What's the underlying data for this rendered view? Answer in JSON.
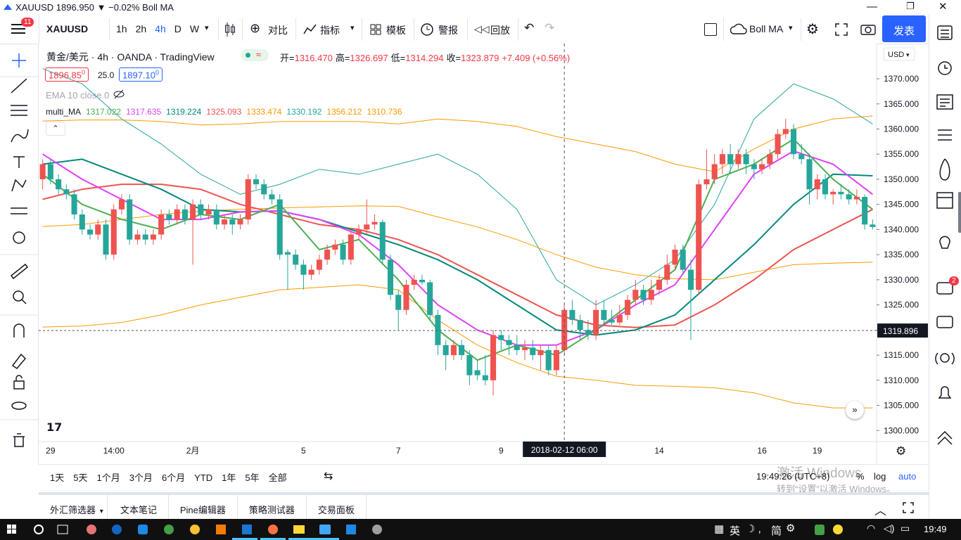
{
  "window_title": "XAUUSD 1896.950 ▼ −0.02% Boll MA",
  "toolbar": {
    "menu_badge": "11",
    "symbol": "XAUUSD",
    "intervals": [
      "1h",
      "2h",
      "4h",
      "D",
      "W"
    ],
    "compare": "对比",
    "indicators": "指标",
    "templates": "模板",
    "alerts": "警报",
    "replay": "回放",
    "study": "Boll MA",
    "publish": "发表"
  },
  "legend": {
    "symbol": "黄金/美元 · 4h · OANDA · TradingView",
    "ohlc": [
      [
        "开=",
        "1316.470"
      ],
      [
        "高=",
        "1326.697"
      ],
      [
        "低=",
        "1314.294"
      ],
      [
        "收=",
        "1323.879"
      ]
    ],
    "change": "+7.409 (+0.56%)",
    "bid": "1896.85",
    "bid_tail": "0",
    "spread": "25.0",
    "ask": "1897.10",
    "ask_tail": "0",
    "ema": "EMA 10 close 0",
    "multi_ma": {
      "name": "multi_MA",
      "values": [
        {
          "text": "1317.022",
          "color": "#4caf50"
        },
        {
          "text": "1317.635",
          "color": "#e040fb"
        },
        {
          "text": "1319.224",
          "color": "#00897b"
        },
        {
          "text": "1325.093",
          "color": "#ef5350"
        },
        {
          "text": "1333.474",
          "color": "#ff9800"
        },
        {
          "text": "1330.192",
          "color": "#26a69a"
        },
        {
          "text": "1356.212",
          "color": "#ff9800"
        },
        {
          "text": "1310.736",
          "color": "#ff9800"
        }
      ]
    }
  },
  "chart_data": {
    "type": "candlestick",
    "currency": "USD",
    "up_color": "#ef5350",
    "down_color": "#26a69a",
    "categories": [
      null,
      "29",
      null,
      null,
      null,
      null,
      null,
      null,
      null,
      "14:00",
      null,
      null,
      null,
      null,
      null,
      null,
      null,
      null,
      null,
      "2月",
      null,
      null,
      null,
      null,
      null,
      null,
      null,
      null,
      null,
      null,
      null,
      null,
      null,
      "5",
      null,
      null,
      null,
      null,
      null,
      null,
      null,
      null,
      null,
      null,
      null,
      "7",
      null,
      null,
      null,
      null,
      null,
      null,
      null,
      null,
      null,
      null,
      null,
      null,
      "9",
      null,
      null,
      null,
      null,
      null,
      null,
      null,
      "2018-02-12 06:00",
      null,
      null,
      null,
      null,
      null,
      null,
      null,
      null,
      null,
      null,
      null,
      "14",
      null,
      null,
      null,
      null,
      null,
      null,
      null,
      null,
      null,
      null,
      null,
      null,
      "16",
      null,
      null,
      null,
      null,
      null,
      null,
      "19",
      null,
      null,
      null,
      null,
      null,
      null,
      null
    ],
    "ohlc": [
      [
        1350,
        1354,
        1348,
        1353
      ],
      [
        1353,
        1354,
        1349,
        1350
      ],
      [
        1350,
        1351,
        1347,
        1348
      ],
      [
        1348,
        1349,
        1346,
        1347
      ],
      [
        1347,
        1348,
        1342,
        1343
      ],
      [
        1343,
        1344,
        1339,
        1340
      ],
      [
        1340,
        1341,
        1338,
        1339
      ],
      [
        1339,
        1342,
        1338,
        1341
      ],
      [
        1341,
        1342,
        1334,
        1335
      ],
      [
        1335,
        1345,
        1334,
        1344
      ],
      [
        1344,
        1347,
        1343,
        1346
      ],
      [
        1346,
        1347,
        1337,
        1338
      ],
      [
        1338,
        1340,
        1337,
        1339
      ],
      [
        1339,
        1340,
        1337,
        1338
      ],
      [
        1338,
        1340,
        1337,
        1339
      ],
      [
        1339,
        1344,
        1338,
        1343
      ],
      [
        1343,
        1344,
        1341,
        1342
      ],
      [
        1342,
        1345,
        1341,
        1344
      ],
      [
        1344,
        1345,
        1341,
        1342
      ],
      [
        1342,
        1346,
        1333,
        1345
      ],
      [
        1345,
        1346,
        1342,
        1343
      ],
      [
        1343,
        1345,
        1342,
        1344
      ],
      [
        1344,
        1345,
        1340,
        1341
      ],
      [
        1341,
        1343,
        1340,
        1342
      ],
      [
        1342,
        1343,
        1339,
        1341
      ],
      [
        1341,
        1343,
        1340,
        1342
      ],
      [
        1342,
        1351,
        1341,
        1350
      ],
      [
        1350,
        1351,
        1348,
        1349
      ],
      [
        1349,
        1350,
        1346,
        1347
      ],
      [
        1347,
        1348,
        1345,
        1346
      ],
      [
        1346,
        1347,
        1334,
        1335
      ],
      [
        1335.5,
        1336,
        1328,
        1335
      ],
      [
        1335,
        1336,
        1332,
        1333
      ],
      [
        1333,
        1334,
        1328,
        1331
      ],
      [
        1331,
        1333,
        1330,
        1332
      ],
      [
        1332,
        1335,
        1331,
        1334
      ],
      [
        1334,
        1337,
        1333,
        1336
      ],
      [
        1336,
        1338,
        1335,
        1337
      ],
      [
        1337,
        1338,
        1333,
        1334
      ],
      [
        1334,
        1340,
        1333,
        1339
      ],
      [
        1339,
        1341,
        1338,
        1340
      ],
      [
        1340,
        1346,
        1339,
        1341
      ],
      [
        1341,
        1343,
        1340,
        1341.5
      ],
      [
        1341.5,
        1342,
        1333,
        1334
      ],
      [
        1334,
        1335,
        1326,
        1327
      ],
      [
        1327,
        1328,
        1320,
        1324
      ],
      [
        1324,
        1330,
        1323,
        1329
      ],
      [
        1329,
        1331,
        1328,
        1330
      ],
      [
        1330,
        1331,
        1329,
        1329.5
      ],
      [
        1329.5,
        1330,
        1322,
        1323
      ],
      [
        1323,
        1324,
        1315,
        1317
      ],
      [
        1317,
        1318,
        1312,
        1315
      ],
      [
        1315,
        1318,
        1314,
        1317
      ],
      [
        1317,
        1318,
        1314,
        1315
      ],
      [
        1315,
        1316,
        1309,
        1311
      ],
      [
        1312,
        1314,
        1310,
        1311
      ],
      [
        1311,
        1315,
        1309,
        1310
      ],
      [
        1310,
        1320,
        1307,
        1319
      ],
      [
        1319,
        1320,
        1316,
        1318
      ],
      [
        1318,
        1319,
        1315,
        1317
      ],
      [
        1317,
        1319,
        1315,
        1316
      ],
      [
        1316,
        1318,
        1314,
        1316.5
      ],
      [
        1316.5,
        1318,
        1314,
        1315
      ],
      [
        1315,
        1317,
        1312,
        1316
      ],
      [
        1316,
        1317,
        1311,
        1312
      ],
      [
        1312,
        1317,
        1311,
        1316
      ],
      [
        1316,
        1325,
        1315,
        1324
      ],
      [
        1324,
        1326,
        1321,
        1322
      ],
      [
        1322,
        1323,
        1318,
        1320
      ],
      [
        1320,
        1322,
        1318,
        1319
      ],
      [
        1319,
        1326,
        1318,
        1324
      ],
      [
        1324,
        1326,
        1321,
        1322
      ],
      [
        1322,
        1324,
        1321,
        1321.5
      ],
      [
        1321.5,
        1325,
        1321,
        1323
      ],
      [
        1323,
        1327,
        1322,
        1326
      ],
      [
        1326,
        1330,
        1325,
        1328
      ],
      [
        1328,
        1329,
        1325,
        1326
      ],
      [
        1326,
        1330,
        1325,
        1328
      ],
      [
        1328,
        1331,
        1327,
        1330
      ],
      [
        1330,
        1335,
        1329,
        1333
      ],
      [
        1333,
        1337,
        1332,
        1336
      ],
      [
        1336,
        1337,
        1331,
        1332
      ],
      [
        1332,
        1334,
        1318,
        1328
      ],
      [
        1328,
        1350,
        1327,
        1349
      ],
      [
        1349,
        1356,
        1348,
        1350
      ],
      [
        1350,
        1355,
        1349,
        1353
      ],
      [
        1353,
        1356,
        1351,
        1355
      ],
      [
        1355,
        1357,
        1351,
        1353
      ],
      [
        1353,
        1356,
        1352,
        1355
      ],
      [
        1355,
        1356,
        1351,
        1353
      ],
      [
        1353,
        1354,
        1350,
        1352
      ],
      [
        1352,
        1354,
        1351,
        1353
      ],
      [
        1353,
        1356,
        1352,
        1355
      ],
      [
        1355,
        1360,
        1354,
        1359
      ],
      [
        1359,
        1362,
        1358,
        1360
      ],
      [
        1360,
        1361,
        1354,
        1355
      ],
      [
        1355,
        1357,
        1353,
        1354
      ],
      [
        1354,
        1355,
        1345,
        1348
      ],
      [
        1348,
        1351,
        1346,
        1350
      ],
      [
        1350,
        1351,
        1346,
        1347
      ],
      [
        1347,
        1348,
        1345,
        1347.5
      ],
      [
        1347.5,
        1349,
        1346,
        1347
      ],
      [
        1347,
        1348,
        1345,
        1346
      ],
      [
        1346,
        1348,
        1345,
        1346.5
      ],
      [
        1346.5,
        1347,
        1340,
        1341
      ],
      [
        1341,
        1342,
        1340,
        1340.5
      ]
    ],
    "lines": [
      {
        "color": "#26a69a",
        "width": 1,
        "values": [
          1372,
          1369,
          1362,
          1357,
          1351,
          1347,
          1349,
          1352,
          1351,
          1353,
          1355,
          1351,
          1344,
          1330,
          1325,
          1329,
          1334,
          1345,
          1362,
          1369,
          1366,
          1361
        ]
      },
      {
        "color": "#ff9800",
        "width": 1,
        "values": [
          1361.6,
          1361.8,
          1361.8,
          1361.5,
          1360.8,
          1361,
          1361.5,
          1361.5,
          1361.5,
          1361,
          1362,
          1361.5,
          1360.5,
          1358.5,
          1357,
          1355.5,
          1353,
          1351.5,
          1356,
          1360,
          1362,
          1362.6
        ]
      },
      {
        "color": "#ff9800",
        "width": 1,
        "values": [
          1340.6,
          1341,
          1342,
          1343,
          1343.7,
          1344,
          1344.3,
          1344.5,
          1344.7,
          1344.6,
          1342.5,
          1340.5,
          1338,
          1335,
          1332.5,
          1331,
          1330.2,
          1330,
          1331.5,
          1333,
          1333.3,
          1333.5
        ]
      },
      {
        "color": "#ff9800",
        "width": 1,
        "values": [
          1320.6,
          1320.8,
          1321.5,
          1323,
          1325,
          1326.5,
          1328,
          1328.5,
          1329,
          1328,
          1322,
          1317,
          1313.5,
          1310.8,
          1310,
          1309,
          1308.8,
          1308.5,
          1307.5,
          1305.5,
          1304.5,
          1304.5
        ]
      },
      {
        "color": "#ef5350",
        "width": 2,
        "values": [
          1346,
          1348,
          1349,
          1349,
          1348,
          1345,
          1343,
          1341,
          1340,
          1338,
          1335,
          1331,
          1327,
          1323,
          1321,
          1320.5,
          1321,
          1325,
          1330,
          1336,
          1340,
          1344
        ]
      },
      {
        "color": "#00897b",
        "width": 2,
        "values": [
          1353,
          1354,
          1351,
          1348,
          1344,
          1343.5,
          1343.7,
          1342,
          1339.5,
          1337,
          1334,
          1330,
          1325,
          1320,
          1319,
          1320,
          1323,
          1330,
          1337,
          1345,
          1351,
          1350.7
        ]
      },
      {
        "color": "#e040fb",
        "width": 2,
        "values": [
          1355,
          1350,
          1346,
          1342,
          1342,
          1343.5,
          1343.7,
          1342,
          1339,
          1333,
          1325,
          1320,
          1317,
          1317,
          1320,
          1325,
          1329,
          1340,
          1351,
          1355.6,
          1353,
          1347
        ]
      },
      {
        "color": "#4caf50",
        "width": 2,
        "values": [
          1351,
          1345,
          1342,
          1340,
          1343,
          1342,
          1345,
          1336,
          1338,
          1330,
          1320,
          1314,
          1317,
          1315,
          1320,
          1326,
          1332,
          1350,
          1353,
          1358,
          1350,
          1344
        ]
      }
    ],
    "last_price": 1319.896,
    "ylim": [
      1297.8,
      1377
    ],
    "yticks": [
      {
        "value": 1300,
        "label": "1300.000"
      },
      {
        "value": 1305,
        "label": "1305.000"
      },
      {
        "value": 1310,
        "label": "1310.000"
      },
      {
        "value": 1315,
        "label": "1315.000"
      },
      {
        "value": 1320,
        "label": "1320.000"
      },
      {
        "value": 1325,
        "label": "1325.000"
      },
      {
        "value": 1330,
        "label": "1330.000"
      },
      {
        "value": 1335,
        "label": "1335.000"
      },
      {
        "value": 1340,
        "label": "1340.000"
      },
      {
        "value": 1345,
        "label": "1345.000"
      },
      {
        "value": 1350,
        "label": "1350.000"
      },
      {
        "value": 1355,
        "label": "1355.000"
      },
      {
        "value": 1360,
        "label": "1360.000"
      },
      {
        "value": 1365,
        "label": "1365.000"
      },
      {
        "value": 1370,
        "label": "1370.000"
      }
    ]
  },
  "range_bar": {
    "ranges": [
      "1天",
      "5天",
      "1个月",
      "3个月",
      "6个月",
      "YTD",
      "1年",
      "5年",
      "全部"
    ],
    "clock": "19:49:26 (UTC+8)",
    "percent": "%",
    "log": "log",
    "auto": "auto"
  },
  "watermark": {
    "title": "激活 Windows",
    "hint": "转到“设置”以激活 Windows。"
  },
  "panel_tabs": [
    "外汇筛选器",
    "文本笔记",
    "Pine编辑器",
    "策略测试器",
    "交易面板"
  ],
  "sidebar_badge": "2",
  "taskbar": {
    "ime": "英",
    "mode": "简",
    "time": "19:49"
  }
}
